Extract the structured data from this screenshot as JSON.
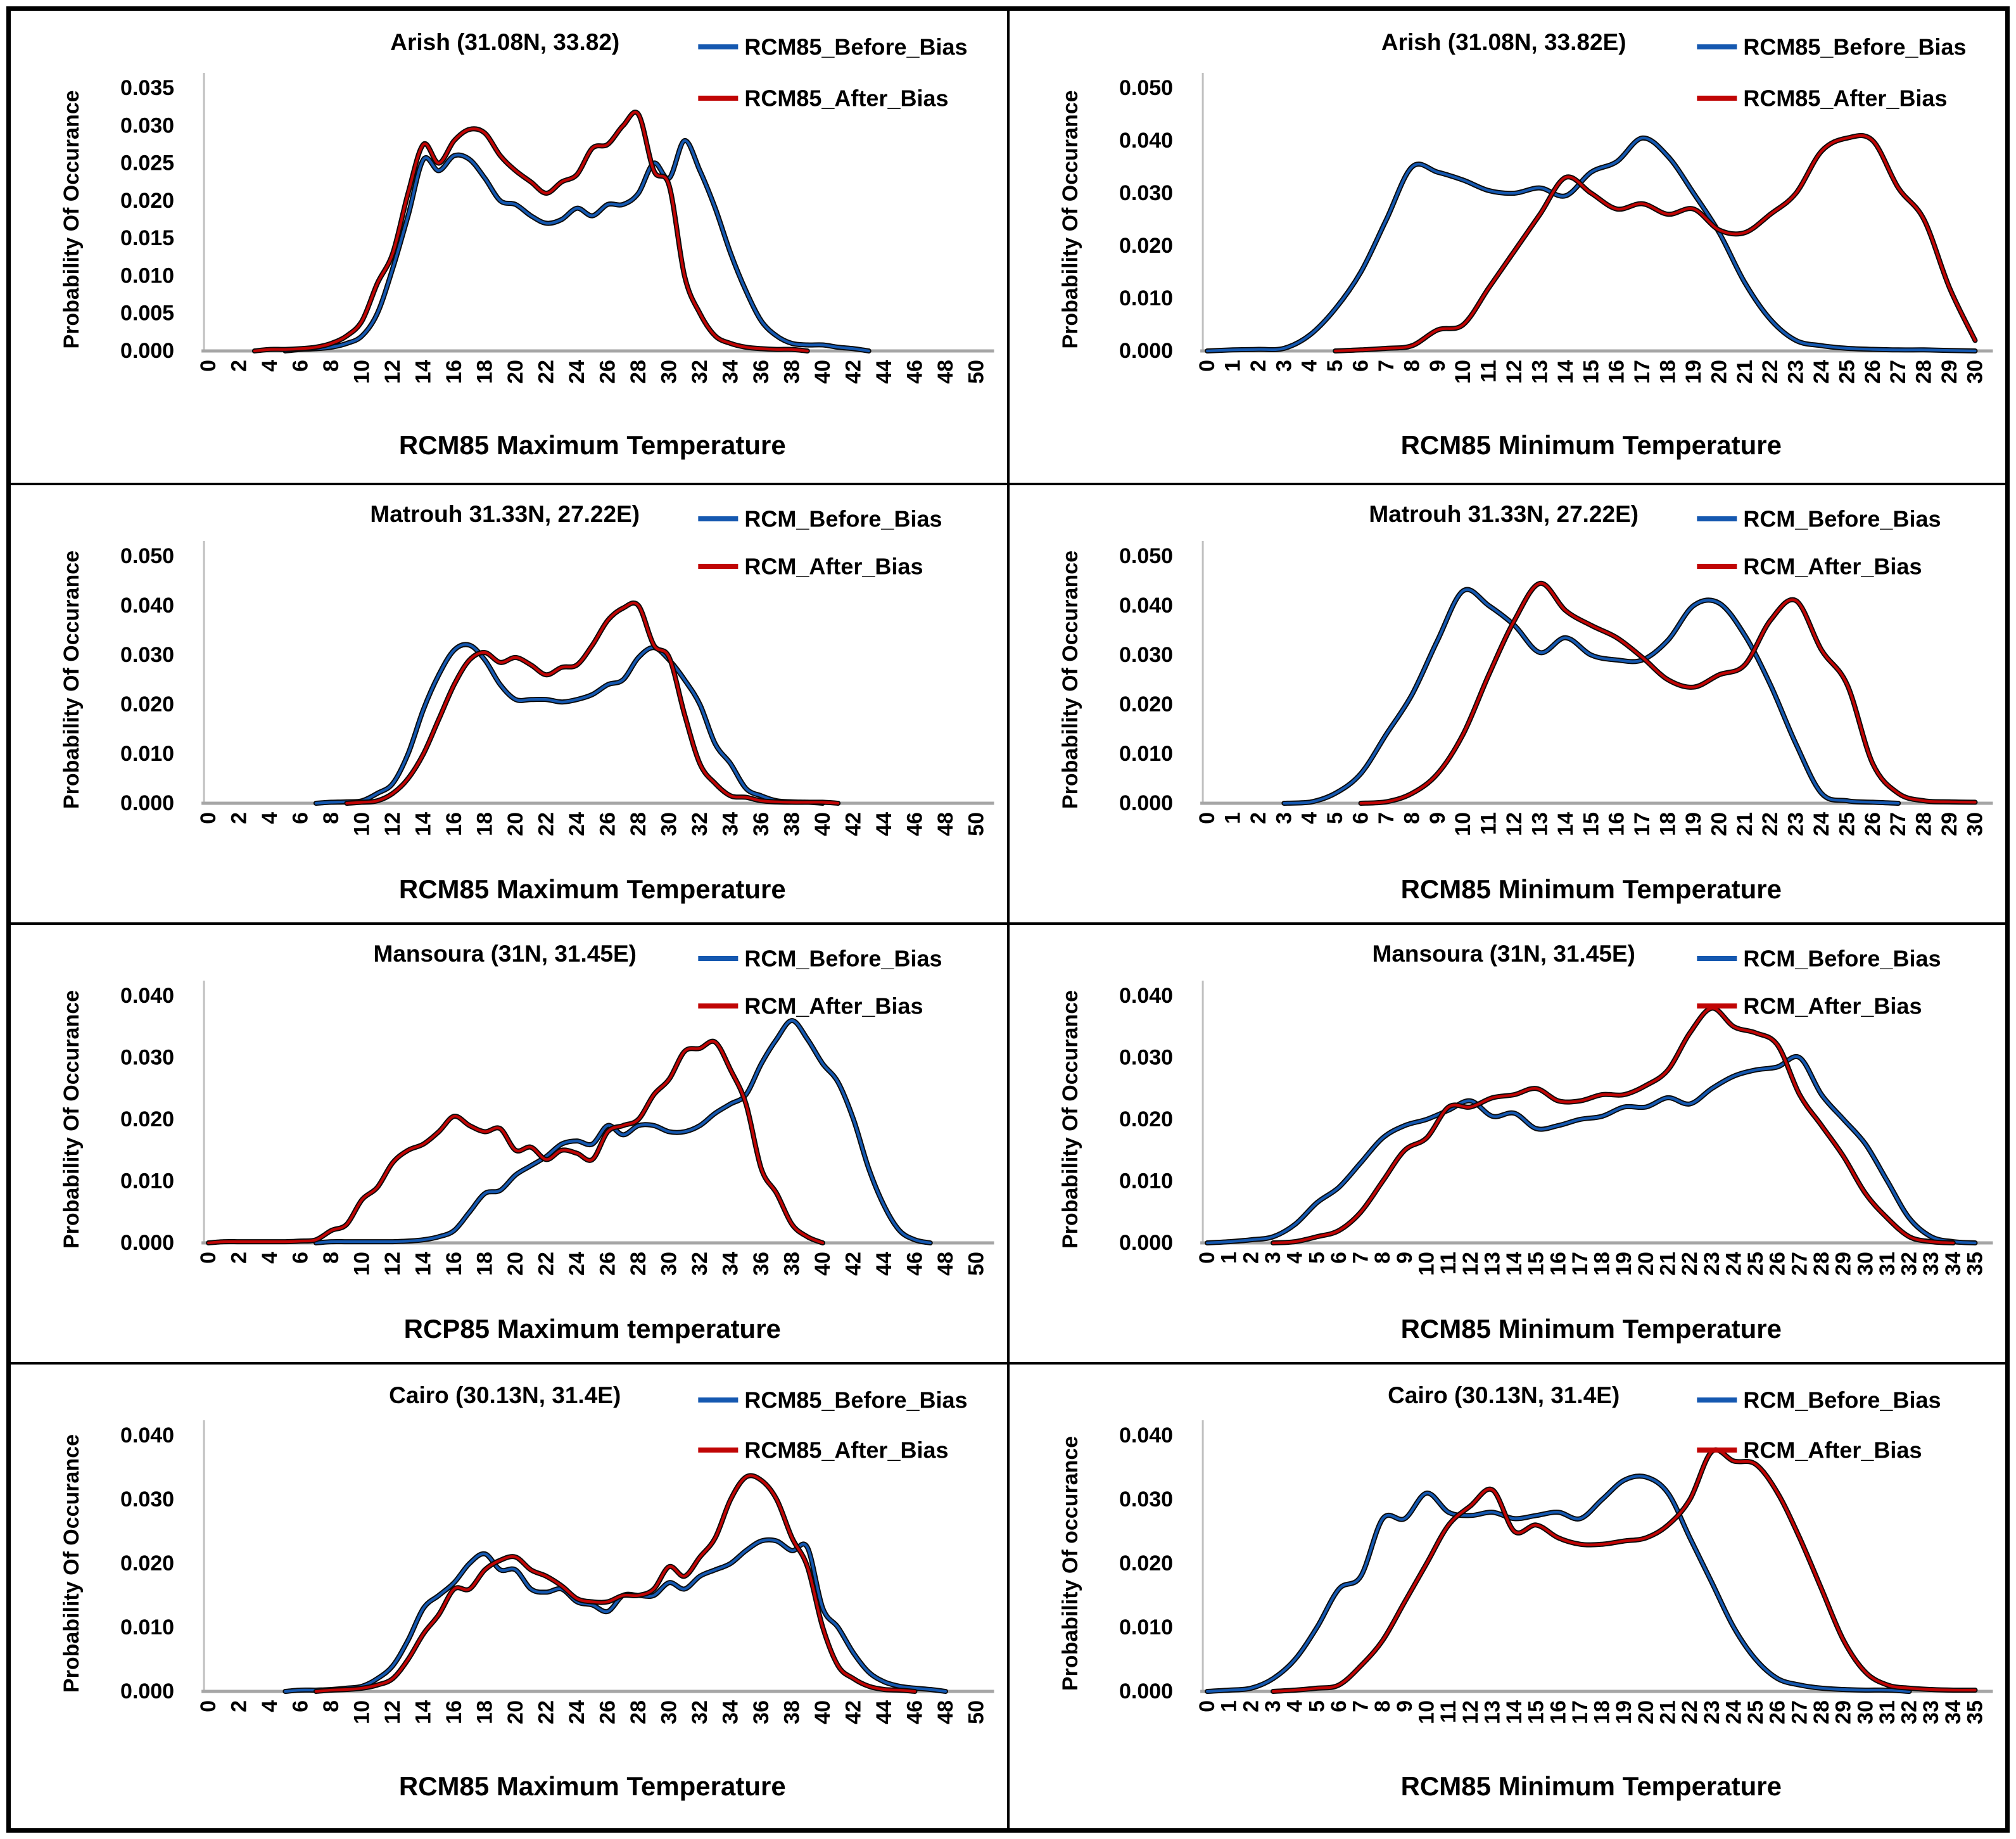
{
  "page": {
    "background": "#ffffff",
    "border_color": "#000000"
  },
  "colors": {
    "before": "#1558B0",
    "after": "#C00505",
    "outline": "#0a0a0a",
    "axis_line": "#C0C0C0",
    "baseline": "#A6A6A6",
    "text": "#000000"
  },
  "chart_data": [
    {
      "id": "arish-max",
      "type": "line",
      "title": "Arish (31.08N, 33.82)",
      "xlabel": "RCM85 Maximum Temperature",
      "ylabel": "Probability Of Occurance",
      "xlim": [
        0,
        50
      ],
      "xtick_step": 2,
      "ylim": [
        0,
        0.035
      ],
      "ytick_step": 0.005,
      "grid": false,
      "legend_position": "top-right",
      "x_step": 1,
      "series": [
        {
          "name": "RCM85_Before_Bias",
          "color": "#1558B0",
          "values": [
            0,
            0,
            0,
            0,
            0,
            0,
            0.0002,
            0.0003,
            0.0005,
            0.001,
            0.002,
            0.005,
            0.011,
            0.018,
            0.0255,
            0.024,
            0.026,
            0.0255,
            0.023,
            0.02,
            0.0195,
            0.018,
            0.017,
            0.0175,
            0.019,
            0.018,
            0.0195,
            0.0195,
            0.021,
            0.025,
            0.023,
            0.028,
            0.024,
            0.019,
            0.013,
            0.008,
            0.004,
            0.002,
            0.001,
            0.0008,
            0.0008,
            0.0005,
            0.0003,
            0,
            0,
            0,
            0,
            0,
            0,
            0,
            0
          ]
        },
        {
          "name": "RCM85_After_Bias",
          "color": "#C00505",
          "values": [
            0,
            0,
            0,
            0,
            0.0002,
            0.0002,
            0.0003,
            0.0005,
            0.001,
            0.002,
            0.004,
            0.009,
            0.013,
            0.021,
            0.0275,
            0.025,
            0.028,
            0.0295,
            0.029,
            0.026,
            0.024,
            0.0225,
            0.021,
            0.0225,
            0.0235,
            0.027,
            0.0275,
            0.03,
            0.0315,
            0.024,
            0.022,
            0.01,
            0.005,
            0.002,
            0.001,
            0.0005,
            0.0003,
            0.0002,
            0.0002,
            0,
            0,
            0,
            0,
            0,
            0,
            0,
            0,
            0,
            0,
            0,
            0
          ]
        }
      ]
    },
    {
      "id": "arish-min",
      "type": "line",
      "title": "Arish (31.08N, 33.82E)",
      "xlabel": "RCM85 Minimum Temperature",
      "ylabel": "Probability Of Occurance",
      "xlim": [
        0,
        30
      ],
      "xtick_step": 1,
      "ylim": [
        0,
        0.05
      ],
      "ytick_step": 0.01,
      "grid": false,
      "legend_position": "top-right",
      "x_step": 1,
      "series": [
        {
          "name": "RCM85_Before_Bias",
          "color": "#1558B0",
          "values": [
            0,
            0.0002,
            0.0003,
            0.0005,
            0.003,
            0.008,
            0.015,
            0.025,
            0.035,
            0.034,
            0.0325,
            0.0305,
            0.03,
            0.031,
            0.0295,
            0.034,
            0.036,
            0.0405,
            0.037,
            0.03,
            0.0225,
            0.013,
            0.006,
            0.002,
            0.001,
            0.0005,
            0.0003,
            0.0002,
            0.0002,
            0.0001,
            0
          ]
        },
        {
          "name": "RCM85_After_Bias",
          "color": "#C00505",
          "values": [
            0,
            0,
            0,
            0,
            0,
            0,
            0.0002,
            0.0005,
            0.001,
            0.004,
            0.005,
            0.012,
            0.019,
            0.026,
            0.033,
            0.03,
            0.027,
            0.028,
            0.026,
            0.027,
            0.023,
            0.0225,
            0.026,
            0.03,
            0.038,
            0.0405,
            0.04,
            0.031,
            0.025,
            0.012,
            0.002
          ]
        }
      ]
    },
    {
      "id": "matrouh-max",
      "type": "line",
      "title": "Matrouh 31.33N, 27.22E)",
      "xlabel": "RCM85 Maximum Temperature",
      "ylabel": "Probability Of Occurance",
      "xlim": [
        0,
        50
      ],
      "xtick_step": 2,
      "ylim": [
        0,
        0.05
      ],
      "ytick_step": 0.01,
      "grid": false,
      "legend_position": "top-right",
      "x_step": 1,
      "series": [
        {
          "name": "RCM_Before_Bias",
          "color": "#1558B0",
          "values": [
            0,
            0,
            0,
            0,
            0,
            0,
            0,
            0,
            0.0002,
            0.0003,
            0.0005,
            0.002,
            0.004,
            0.01,
            0.019,
            0.026,
            0.031,
            0.032,
            0.029,
            0.024,
            0.021,
            0.021,
            0.021,
            0.0205,
            0.021,
            0.022,
            0.024,
            0.025,
            0.0295,
            0.0315,
            0.029,
            0.025,
            0.02,
            0.012,
            0.008,
            0.003,
            0.0015,
            0.0005,
            0.0003,
            0.0002,
            0,
            0,
            0,
            0,
            0,
            0,
            0,
            0,
            0,
            0,
            0
          ]
        },
        {
          "name": "RCM_After_Bias",
          "color": "#C00505",
          "values": [
            0,
            0,
            0,
            0,
            0,
            0,
            0,
            0,
            0,
            0,
            0.0002,
            0.0005,
            0.002,
            0.005,
            0.01,
            0.017,
            0.024,
            0.029,
            0.0305,
            0.0285,
            0.0295,
            0.028,
            0.026,
            0.0275,
            0.028,
            0.032,
            0.037,
            0.0395,
            0.04,
            0.032,
            0.0295,
            0.018,
            0.008,
            0.004,
            0.0015,
            0.0012,
            0.0005,
            0.0003,
            0.0002,
            0.0002,
            0.0002,
            0,
            0,
            0,
            0,
            0,
            0,
            0,
            0,
            0,
            0
          ]
        }
      ]
    },
    {
      "id": "matrouh-min",
      "type": "line",
      "title": "Matrouh 31.33N, 27.22E)",
      "xlabel": "RCM85 Minimum Temperature",
      "ylabel": "Probability Of Occurance",
      "xlim": [
        0,
        30
      ],
      "xtick_step": 1,
      "ylim": [
        0,
        0.05
      ],
      "ytick_step": 0.01,
      "grid": false,
      "legend_position": "top-right",
      "x_step": 1,
      "series": [
        {
          "name": "RCM_Before_Bias",
          "color": "#1558B0",
          "values": [
            0,
            0,
            0,
            0,
            0.0002,
            0.002,
            0.006,
            0.014,
            0.022,
            0.033,
            0.043,
            0.04,
            0.036,
            0.0305,
            0.0335,
            0.03,
            0.029,
            0.029,
            0.033,
            0.04,
            0.0405,
            0.034,
            0.024,
            0.012,
            0.002,
            0.0005,
            0.0002,
            0,
            0,
            0,
            0
          ]
        },
        {
          "name": "RCM_After_Bias",
          "color": "#C00505",
          "values": [
            0,
            0,
            0,
            0,
            0,
            0,
            0,
            0.0003,
            0.002,
            0.006,
            0.014,
            0.026,
            0.037,
            0.0445,
            0.039,
            0.036,
            0.0335,
            0.0295,
            0.025,
            0.0235,
            0.026,
            0.028,
            0.037,
            0.041,
            0.031,
            0.024,
            0.008,
            0.002,
            0.0005,
            0.0003,
            0.0002
          ]
        }
      ]
    },
    {
      "id": "mansoura-max",
      "type": "line",
      "title": "Mansoura (31N, 31.45E)",
      "xlabel": "RCP85 Maximum temperature",
      "ylabel": "Probability Of Occurance",
      "xlim": [
        0,
        50
      ],
      "xtick_step": 2,
      "ylim": [
        0,
        0.04
      ],
      "ytick_step": 0.01,
      "grid": false,
      "legend_position": "top-right",
      "x_step": 1,
      "series": [
        {
          "name": "RCM_Before_Bias",
          "color": "#1558B0",
          "values": [
            0,
            0,
            0,
            0,
            0,
            0,
            0,
            0,
            0.0002,
            0.0002,
            0.0002,
            0.0002,
            0.0002,
            0.0003,
            0.0005,
            0.001,
            0.002,
            0.005,
            0.008,
            0.0085,
            0.011,
            0.0125,
            0.014,
            0.016,
            0.0165,
            0.016,
            0.019,
            0.0175,
            0.019,
            0.019,
            0.018,
            0.018,
            0.019,
            0.021,
            0.0225,
            0.024,
            0.029,
            0.033,
            0.036,
            0.033,
            0.029,
            0.026,
            0.02,
            0.012,
            0.006,
            0.002,
            0.0005,
            0,
            0,
            0,
            0
          ]
        },
        {
          "name": "RCM_After_Bias",
          "color": "#C00505",
          "values": [
            0,
            0.0002,
            0.0002,
            0.0002,
            0.0002,
            0.0002,
            0.0003,
            0.0005,
            0.002,
            0.003,
            0.007,
            0.009,
            0.013,
            0.015,
            0.016,
            0.018,
            0.0205,
            0.019,
            0.018,
            0.0185,
            0.015,
            0.0155,
            0.0135,
            0.015,
            0.0145,
            0.0135,
            0.018,
            0.019,
            0.02,
            0.024,
            0.0265,
            0.031,
            0.0315,
            0.0325,
            0.028,
            0.0225,
            0.012,
            0.008,
            0.003,
            0.001,
            0,
            0,
            0,
            0,
            0,
            0,
            0,
            0,
            0,
            0,
            0
          ]
        }
      ]
    },
    {
      "id": "mansoura-min",
      "type": "line",
      "title": "Mansoura (31N, 31.45E)",
      "xlabel": "RCM85 Minimum Temperature",
      "ylabel": "Probability Of Occurance",
      "xlim": [
        0,
        35
      ],
      "xtick_step": 1,
      "ylim": [
        0,
        0.04
      ],
      "ytick_step": 0.01,
      "grid": false,
      "legend_position": "top-right",
      "x_step": 1,
      "series": [
        {
          "name": "RCM_Before_Bias",
          "color": "#1558B0",
          "values": [
            0,
            0.0002,
            0.0005,
            0.001,
            0.003,
            0.0065,
            0.009,
            0.013,
            0.017,
            0.019,
            0.02,
            0.0215,
            0.023,
            0.0205,
            0.021,
            0.0185,
            0.019,
            0.02,
            0.0205,
            0.022,
            0.022,
            0.0235,
            0.0225,
            0.025,
            0.027,
            0.028,
            0.0285,
            0.03,
            0.024,
            0.02,
            0.016,
            0.01,
            0.004,
            0.001,
            0.0002,
            0
          ]
        },
        {
          "name": "RCM_After_Bias",
          "color": "#C00505",
          "values": [
            0,
            0,
            0,
            0,
            0.0002,
            0.001,
            0.002,
            0.005,
            0.01,
            0.015,
            0.017,
            0.022,
            0.022,
            0.0235,
            0.024,
            0.025,
            0.023,
            0.023,
            0.024,
            0.024,
            0.0255,
            0.028,
            0.034,
            0.038,
            0.035,
            0.034,
            0.032,
            0.024,
            0.019,
            0.014,
            0.008,
            0.004,
            0.001,
            0.0002,
            0,
            0
          ]
        }
      ]
    },
    {
      "id": "cairo-max",
      "type": "line",
      "title": "Cairo (30.13N, 31.4E)",
      "xlabel": "RCM85 Maximum Temperature",
      "ylabel": "Probability Of Occurance",
      "xlim": [
        0,
        50
      ],
      "xtick_step": 2,
      "ylim": [
        0,
        0.04
      ],
      "ytick_step": 0.01,
      "grid": false,
      "legend_position": "top-right",
      "x_step": 1,
      "series": [
        {
          "name": "RCM85_Before_Bias",
          "color": "#1558B0",
          "values": [
            0,
            0,
            0,
            0,
            0,
            0,
            0.0002,
            0.0002,
            0.0003,
            0.0005,
            0.0008,
            0.002,
            0.004,
            0.008,
            0.013,
            0.015,
            0.017,
            0.02,
            0.0215,
            0.019,
            0.019,
            0.016,
            0.0155,
            0.016,
            0.014,
            0.0135,
            0.0125,
            0.015,
            0.015,
            0.015,
            0.017,
            0.016,
            0.018,
            0.019,
            0.02,
            0.022,
            0.0235,
            0.0235,
            0.022,
            0.0225,
            0.013,
            0.01,
            0.006,
            0.003,
            0.0015,
            0.0008,
            0.0005,
            0.0003,
            0,
            0,
            0
          ]
        },
        {
          "name": "RCM85_After_Bias",
          "color": "#C00505",
          "values": [
            0,
            0,
            0,
            0,
            0,
            0,
            0,
            0,
            0.0002,
            0.0003,
            0.0005,
            0.001,
            0.002,
            0.005,
            0.009,
            0.012,
            0.016,
            0.016,
            0.019,
            0.0205,
            0.021,
            0.019,
            0.018,
            0.0165,
            0.0145,
            0.014,
            0.014,
            0.015,
            0.015,
            0.016,
            0.0195,
            0.018,
            0.021,
            0.024,
            0.03,
            0.0335,
            0.033,
            0.03,
            0.024,
            0.0195,
            0.01,
            0.004,
            0.002,
            0.0008,
            0.0003,
            0.0002,
            0,
            0,
            0,
            0,
            0
          ]
        }
      ]
    },
    {
      "id": "cairo-min",
      "type": "line",
      "title": "Cairo (30.13N, 31.4E)",
      "xlabel": "RCM85 Minimum Temperature",
      "ylabel": "Probability Of occurance",
      "xlim": [
        0,
        35
      ],
      "xtick_step": 1,
      "ylim": [
        0,
        0.04
      ],
      "ytick_step": 0.01,
      "grid": false,
      "legend_position": "top-right",
      "x_step": 1,
      "series": [
        {
          "name": "RCM_Before_Bias",
          "color": "#1558B0",
          "values": [
            0,
            0.0002,
            0.0005,
            0.002,
            0.005,
            0.01,
            0.016,
            0.018,
            0.027,
            0.027,
            0.031,
            0.028,
            0.0275,
            0.028,
            0.027,
            0.0275,
            0.028,
            0.027,
            0.03,
            0.033,
            0.0335,
            0.031,
            0.024,
            0.017,
            0.01,
            0.005,
            0.002,
            0.001,
            0.0005,
            0.0003,
            0.0002,
            0.0002,
            0,
            0,
            0,
            0
          ]
        },
        {
          "name": "RCM_After_Bias",
          "color": "#C00505",
          "values": [
            0,
            0,
            0,
            0,
            0.0002,
            0.0005,
            0.001,
            0.004,
            0.008,
            0.014,
            0.02,
            0.026,
            0.029,
            0.0315,
            0.025,
            0.026,
            0.024,
            0.023,
            0.023,
            0.0235,
            0.024,
            0.026,
            0.03,
            0.0375,
            0.036,
            0.0355,
            0.031,
            0.024,
            0.016,
            0.008,
            0.003,
            0.001,
            0.0005,
            0.0003,
            0.0002,
            0.0002
          ]
        }
      ]
    }
  ]
}
